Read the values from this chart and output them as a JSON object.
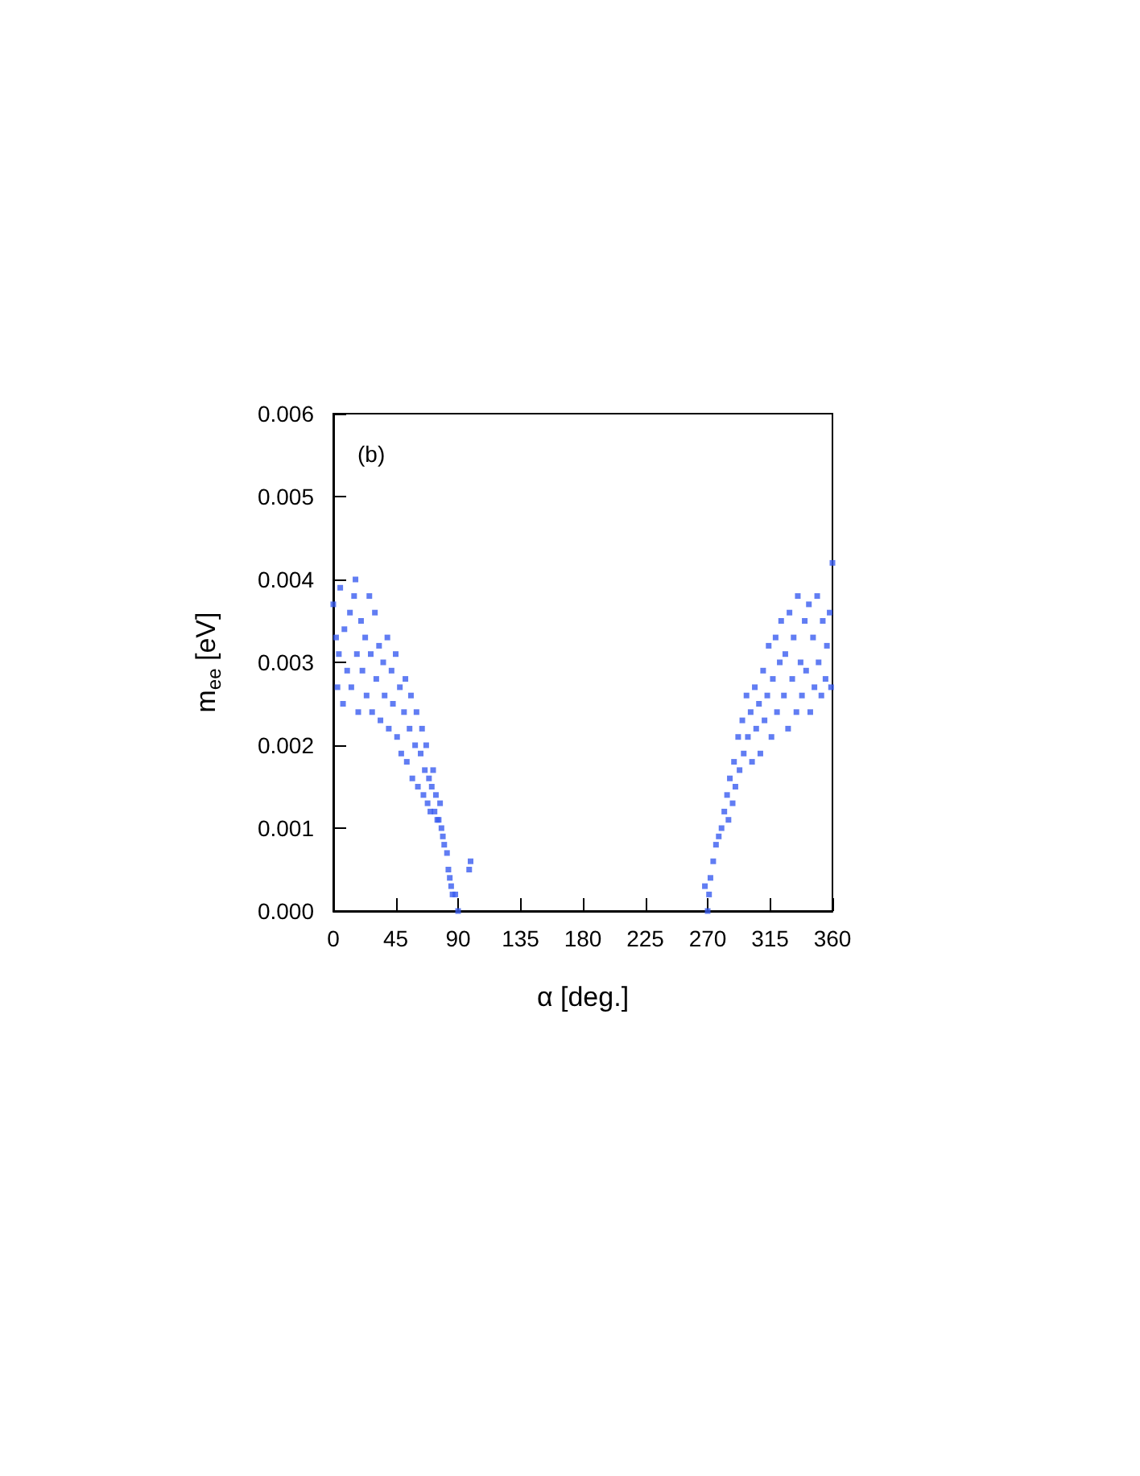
{
  "chart_data": {
    "type": "scatter",
    "xlabel": "α [deg.]",
    "ylabel": "m$_{ee}$ [eV]",
    "annotations": [
      "(b)"
    ],
    "xlim": [
      0,
      360
    ],
    "xticks": [
      0,
      45,
      90,
      135,
      180,
      225,
      270,
      315,
      360
    ],
    "ylim": [
      0,
      0.006
    ],
    "yticks": [
      {
        "value": 0,
        "label": "0.000"
      },
      0.001,
      0.002,
      0.003,
      0.004,
      0.005,
      0.006
    ],
    "grid": false,
    "marker": "square",
    "series": [
      {
        "color": "#3a5cf0",
        "x": [
          0,
          2,
          3,
          4,
          5,
          7,
          8,
          10,
          12,
          13,
          15,
          16,
          17,
          18,
          20,
          21,
          23,
          24,
          26,
          27,
          28,
          30,
          31,
          33,
          34,
          36,
          37,
          39,
          40,
          42,
          43,
          45,
          46,
          48,
          49,
          51,
          52,
          53,
          55,
          56,
          57,
          59,
          60,
          61,
          63,
          64,
          65,
          66,
          67,
          68,
          69,
          70,
          71,
          72,
          73,
          74,
          75,
          76,
          77,
          78,
          79,
          80,
          82,
          83,
          84,
          85,
          86,
          88,
          90,
          98,
          99
        ],
        "values": [
          0.0037,
          0.0033,
          0.0027,
          0.0031,
          0.0039,
          0.0025,
          0.0034,
          0.0029,
          0.0036,
          0.0027,
          0.0038,
          0.004,
          0.0031,
          0.0024,
          0.0035,
          0.0029,
          0.0033,
          0.0026,
          0.0038,
          0.0031,
          0.0024,
          0.0036,
          0.0028,
          0.0032,
          0.0023,
          0.003,
          0.0026,
          0.0033,
          0.0022,
          0.0029,
          0.0025,
          0.0031,
          0.0021,
          0.0027,
          0.0019,
          0.0024,
          0.0028,
          0.0018,
          0.0022,
          0.0026,
          0.0016,
          0.002,
          0.0024,
          0.0015,
          0.0019,
          0.0022,
          0.0014,
          0.0017,
          0.002,
          0.0013,
          0.0016,
          0.0012,
          0.0015,
          0.0017,
          0.0012,
          0.0014,
          0.0011,
          0.0011,
          0.0013,
          0.001,
          0.0009,
          0.0008,
          0.0007,
          0.0005,
          0.0004,
          0.0003,
          0.0002,
          0.0002,
          0,
          0.0005,
          0.0006
        ]
      },
      {
        "color": "#3a5cf0",
        "x": [
          268,
          270,
          271,
          272,
          274,
          276,
          278,
          280,
          282,
          284,
          285,
          286,
          288,
          289,
          290,
          292,
          293,
          295,
          296,
          298,
          299,
          301,
          302,
          304,
          305,
          307,
          308,
          310,
          311,
          313,
          314,
          316,
          317,
          319,
          320,
          322,
          323,
          325,
          326,
          328,
          329,
          331,
          332,
          334,
          335,
          337,
          338,
          340,
          341,
          343,
          344,
          346,
          347,
          349,
          350,
          352,
          353,
          355,
          356,
          358,
          359,
          360
        ],
        "values": [
          0.0003,
          0,
          0.0002,
          0.0004,
          0.0006,
          0.0008,
          0.0009,
          0.001,
          0.0012,
          0.0014,
          0.0011,
          0.0016,
          0.0013,
          0.0018,
          0.0015,
          0.0021,
          0.0017,
          0.0023,
          0.0019,
          0.0026,
          0.0021,
          0.0024,
          0.0018,
          0.0027,
          0.0022,
          0.0025,
          0.0019,
          0.0029,
          0.0023,
          0.0026,
          0.0032,
          0.0021,
          0.0028,
          0.0033,
          0.0024,
          0.003,
          0.0035,
          0.0026,
          0.0031,
          0.0022,
          0.0036,
          0.0028,
          0.0033,
          0.0024,
          0.0038,
          0.003,
          0.0026,
          0.0035,
          0.0029,
          0.0037,
          0.0024,
          0.0033,
          0.0027,
          0.0038,
          0.003,
          0.0026,
          0.0035,
          0.0028,
          0.0032,
          0.0036,
          0.0027,
          0.0042
        ]
      }
    ]
  }
}
